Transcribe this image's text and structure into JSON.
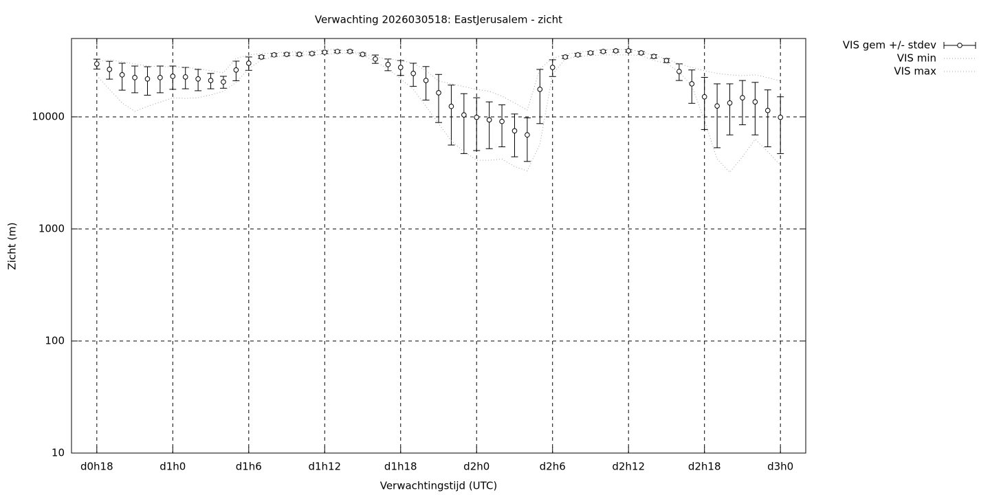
{
  "chart_data": {
    "type": "errorbar",
    "title": "Verwachting 2026030518: EastJerusalem - zicht",
    "x_label": "Verwachtingstijd (UTC)",
    "y_label": "Zicht (m)",
    "log_y": true,
    "grid": true,
    "legend": "outside-top-right",
    "xlim": [
      16,
      74
    ],
    "ylim": [
      10,
      50000
    ],
    "xticks": [
      {
        "value": 18,
        "label": "d0h18"
      },
      {
        "value": 24,
        "label": "d1h0"
      },
      {
        "value": 30,
        "label": "d1h6"
      },
      {
        "value": 36,
        "label": "d1h12"
      },
      {
        "value": 42,
        "label": "d1h18"
      },
      {
        "value": 48,
        "label": "d2h0"
      },
      {
        "value": 54,
        "label": "d2h6"
      },
      {
        "value": 60,
        "label": "d2h12"
      },
      {
        "value": 66,
        "label": "d2h18"
      },
      {
        "value": 72,
        "label": "d3h0"
      }
    ],
    "yticks": [
      10,
      100,
      1000,
      10000
    ],
    "x": [
      18,
      19,
      20,
      21,
      22,
      23,
      24,
      25,
      26,
      27,
      28,
      29,
      30,
      31,
      32,
      33,
      34,
      35,
      36,
      37,
      38,
      39,
      40,
      41,
      42,
      43,
      44,
      45,
      46,
      47,
      48,
      49,
      50,
      51,
      52,
      53,
      54,
      55,
      56,
      57,
      58,
      59,
      60,
      61,
      62,
      63,
      64,
      65,
      66,
      67,
      68,
      69,
      70,
      71,
      72
    ],
    "series": [
      {
        "name": "VIS gem +/- stdev",
        "color": "#000000",
        "values": [
          29700,
          26500,
          23700,
          22400,
          21800,
          22400,
          23000,
          22700,
          21800,
          21100,
          20500,
          26200,
          30100,
          34200,
          35700,
          36100,
          36100,
          36700,
          37700,
          38300,
          38300,
          36100,
          32800,
          29300,
          27600,
          24400,
          21100,
          16400,
          12400,
          10400,
          9900,
          9400,
          9100,
          7500,
          6900,
          17600,
          27600,
          34200,
          35700,
          37200,
          38300,
          38800,
          38800,
          37200,
          34600,
          31800,
          25400,
          19700,
          15100,
          12500,
          13300,
          14800,
          13600,
          11400,
          9900
        ],
        "errors": [
          3000,
          4800,
          6400,
          6000,
          6200,
          6000,
          5400,
          4900,
          4700,
          3300,
          2500,
          5200,
          4100,
          1000,
          1000,
          1000,
          1000,
          1000,
          1000,
          1000,
          1000,
          1000,
          2800,
          3500,
          4200,
          5700,
          7000,
          7500,
          6800,
          5700,
          4900,
          4200,
          3700,
          3100,
          2900,
          8900,
          4700,
          1000,
          1000,
          1000,
          1000,
          1000,
          1000,
          1000,
          1200,
          1300,
          4300,
          6500,
          7400,
          7200,
          6400,
          6300,
          6700,
          6000,
          5200
        ]
      },
      {
        "name": "VIS min",
        "color": "#a0a0a0",
        "values": [
          23300,
          17600,
          13300,
          11200,
          12400,
          13500,
          14800,
          14600,
          14800,
          15700,
          16900,
          20300,
          26900,
          32300,
          34200,
          35200,
          35700,
          35700,
          36100,
          36700,
          37200,
          35700,
          31000,
          26900,
          21800,
          17600,
          12400,
          8700,
          6100,
          4900,
          4100,
          4100,
          4200,
          3600,
          3300,
          5700,
          24000,
          32800,
          34600,
          35200,
          35700,
          35700,
          35700,
          35200,
          31800,
          30100,
          25100,
          18900,
          9300,
          4200,
          3200,
          4400,
          6300,
          4900,
          3700
        ]
      },
      {
        "name": "VIS max",
        "color": "#a0a0a0",
        "values": [
          31000,
          32300,
          31000,
          29700,
          28400,
          28000,
          28000,
          27600,
          26900,
          25800,
          24700,
          33200,
          35700,
          36700,
          37200,
          37700,
          38300,
          38800,
          39900,
          39900,
          38300,
          36700,
          34200,
          32800,
          31800,
          30100,
          25800,
          20900,
          19700,
          18600,
          17600,
          16900,
          15300,
          13300,
          11500,
          26900,
          33200,
          36100,
          37700,
          38800,
          39900,
          39900,
          39900,
          38300,
          35200,
          32800,
          29700,
          27600,
          25800,
          24400,
          23700,
          23300,
          23700,
          22400,
          20900
        ]
      }
    ]
  }
}
